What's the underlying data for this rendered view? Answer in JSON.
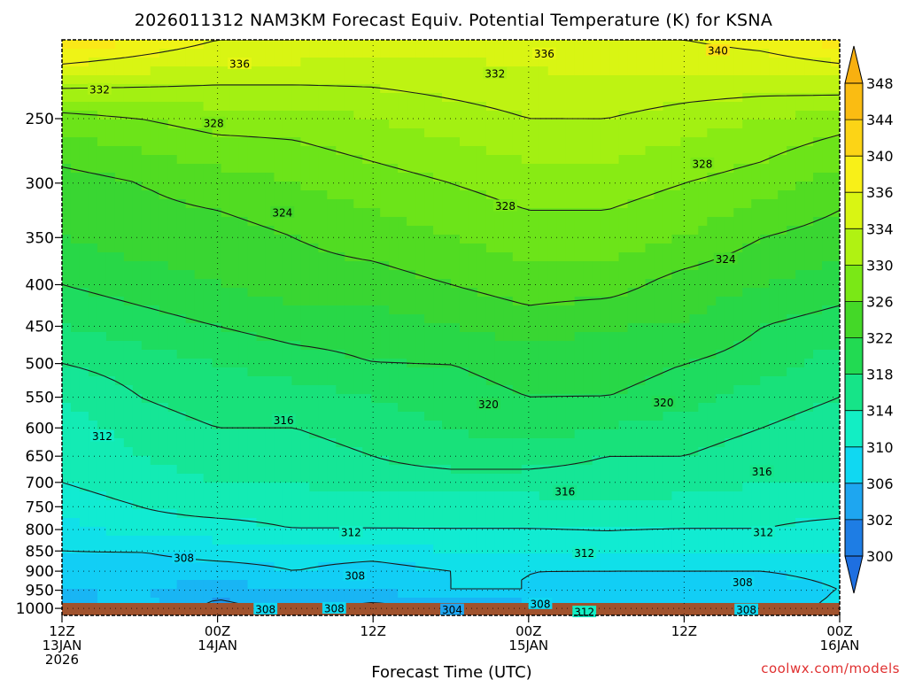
{
  "chart_data": {
    "type": "heatmap",
    "title": "2026011312 NAM3KM Forecast Equiv. Potential Temperature (K) for KSNA",
    "xlabel": "Forecast Time (UTC)",
    "ylabel": "",
    "credit": "coolwx.com/models",
    "y_scale": "log",
    "ylim": [
      1020,
      200
    ],
    "y_ticks": [
      250,
      300,
      350,
      400,
      450,
      500,
      550,
      600,
      650,
      700,
      750,
      800,
      850,
      900,
      950,
      1000
    ],
    "x_ticks": [
      {
        "hour": 0,
        "line1": "12Z",
        "line2": "13JAN",
        "line3": "2026"
      },
      {
        "hour": 12,
        "line1": "00Z",
        "line2": "14JAN",
        "line3": ""
      },
      {
        "hour": 24,
        "line1": "12Z",
        "line2": "",
        "line3": ""
      },
      {
        "hour": 36,
        "line1": "00Z",
        "line2": "15JAN",
        "line3": ""
      },
      {
        "hour": 48,
        "line1": "12Z",
        "line2": "",
        "line3": ""
      },
      {
        "hour": 60,
        "line1": "00Z",
        "line2": "16JAN",
        "line3": ""
      }
    ],
    "xlim": [
      0,
      60
    ],
    "grid": true,
    "colorbar": {
      "labels": [
        348,
        344,
        340,
        336,
        334,
        330,
        326,
        322,
        318,
        314,
        310,
        306,
        302,
        300
      ],
      "min": 300,
      "max": 348
    },
    "hours": [
      0,
      6,
      12,
      18,
      24,
      30,
      36,
      42,
      48,
      54,
      60
    ],
    "levels": [
      1000,
      950,
      900,
      850,
      800,
      750,
      700,
      650,
      600,
      550,
      500,
      450,
      400,
      350,
      300,
      250,
      200
    ],
    "values": [
      [
        305,
        307,
        303,
        305,
        303,
        304,
        305,
        306,
        308,
        306,
        309
      ],
      [
        306,
        306,
        305,
        306,
        306,
        308,
        308,
        307,
        306,
        306,
        308
      ],
      [
        307,
        307,
        307,
        308,
        307,
        308,
        308,
        308,
        308,
        308,
        309
      ],
      [
        308,
        308,
        309,
        309,
        309,
        310,
        310,
        311,
        310,
        310,
        310
      ],
      [
        309,
        311,
        311,
        312,
        312,
        312,
        312,
        312,
        312,
        312,
        311
      ],
      [
        311,
        312,
        313,
        313,
        313,
        313,
        313,
        314,
        313,
        313,
        313
      ],
      [
        312,
        313,
        314,
        314,
        315,
        315,
        315,
        315,
        315,
        314,
        314
      ],
      [
        312,
        314,
        315,
        315,
        316,
        317,
        317,
        316,
        316,
        315,
        314
      ],
      [
        313,
        315,
        316,
        316,
        317,
        318,
        319,
        318,
        317,
        316,
        315
      ],
      [
        314,
        316,
        317,
        317,
        318,
        319,
        320,
        320,
        319,
        317,
        316
      ],
      [
        316,
        317,
        318,
        319,
        320,
        320,
        321,
        321,
        320,
        319,
        317
      ],
      [
        318,
        319,
        320,
        321,
        321,
        322,
        323,
        322,
        322,
        320,
        319
      ],
      [
        320,
        321,
        322,
        323,
        323,
        324,
        325,
        325,
        323,
        322,
        321
      ],
      [
        322,
        323,
        323,
        324,
        325,
        326,
        327,
        327,
        326,
        324,
        323
      ],
      [
        323,
        324,
        325,
        326,
        327,
        328,
        329,
        329,
        328,
        327,
        325
      ],
      [
        327,
        328,
        329,
        329,
        330,
        331,
        332,
        332,
        331,
        330,
        329
      ],
      [
        340,
        338,
        336,
        336,
        335,
        335,
        335,
        336,
        336,
        337,
        339
      ]
    ],
    "contour_interval": 4,
    "contour_labels": [
      {
        "value": 336,
        "hour": 13.7,
        "level": 214
      },
      {
        "value": 336,
        "hour": 37.2,
        "level": 208
      },
      {
        "value": 340,
        "hour": 50.6,
        "level": 206
      },
      {
        "value": 332,
        "hour": 2.9,
        "level": 230
      },
      {
        "value": 332,
        "hour": 33.4,
        "level": 220
      },
      {
        "value": 328,
        "hour": 11.7,
        "level": 253
      },
      {
        "value": 328,
        "hour": 49.4,
        "level": 284
      },
      {
        "value": 328,
        "hour": 34.2,
        "level": 320
      },
      {
        "value": 324,
        "hour": 17.0,
        "level": 326
      },
      {
        "value": 324,
        "hour": 51.2,
        "level": 372
      },
      {
        "value": 320,
        "hour": 32.9,
        "level": 561
      },
      {
        "value": 320,
        "hour": 46.4,
        "level": 558
      },
      {
        "value": 316,
        "hour": 17.1,
        "level": 587
      },
      {
        "value": 316,
        "hour": 54.0,
        "level": 679
      },
      {
        "value": 316,
        "hour": 38.8,
        "level": 718
      },
      {
        "value": 312,
        "hour": 3.1,
        "level": 614
      },
      {
        "value": 312,
        "hour": 22.3,
        "level": 806
      },
      {
        "value": 312,
        "hour": 40.3,
        "level": 855
      },
      {
        "value": 312,
        "hour": 54.1,
        "level": 806
      },
      {
        "value": 308,
        "hour": 9.4,
        "level": 867
      },
      {
        "value": 308,
        "hour": 22.6,
        "level": 911
      },
      {
        "value": 308,
        "hour": 52.5,
        "level": 929
      },
      {
        "value": 308,
        "hour": 36.9,
        "level": 987
      },
      {
        "value": 308,
        "hour": 15.7,
        "level": 1002
      },
      {
        "value": 308,
        "hour": 21.0,
        "level": 1000
      },
      {
        "value": 304,
        "hour": 30.1,
        "level": 1004
      },
      {
        "value": 312,
        "hour": 40.3,
        "level": 1010
      },
      {
        "value": 308,
        "hour": 52.8,
        "level": 1004
      }
    ],
    "palette": [
      {
        "value": 300,
        "color": "#1e6fe0"
      },
      {
        "value": 302,
        "color": "#1e8ae8"
      },
      {
        "value": 304,
        "color": "#1ea6f0"
      },
      {
        "value": 306,
        "color": "#14c4f8"
      },
      {
        "value": 308,
        "color": "#10d8f2"
      },
      {
        "value": 310,
        "color": "#10e8e0"
      },
      {
        "value": 312,
        "color": "#12eec4"
      },
      {
        "value": 314,
        "color": "#14e8a4"
      },
      {
        "value": 316,
        "color": "#16e488"
      },
      {
        "value": 318,
        "color": "#1ade6c"
      },
      {
        "value": 320,
        "color": "#22da52"
      },
      {
        "value": 322,
        "color": "#2ed43c"
      },
      {
        "value": 324,
        "color": "#44d828"
      },
      {
        "value": 326,
        "color": "#5ee01c"
      },
      {
        "value": 328,
        "color": "#7ae816"
      },
      {
        "value": 330,
        "color": "#96ee12"
      },
      {
        "value": 332,
        "color": "#b0f212"
      },
      {
        "value": 334,
        "color": "#ccf412"
      },
      {
        "value": 336,
        "color": "#e6f614"
      },
      {
        "value": 338,
        "color": "#f8f018"
      },
      {
        "value": 340,
        "color": "#fce018"
      },
      {
        "value": 344,
        "color": "#fcc814"
      },
      {
        "value": 348,
        "color": "#f8b010"
      }
    ],
    "ground_color": "#a0522d"
  }
}
